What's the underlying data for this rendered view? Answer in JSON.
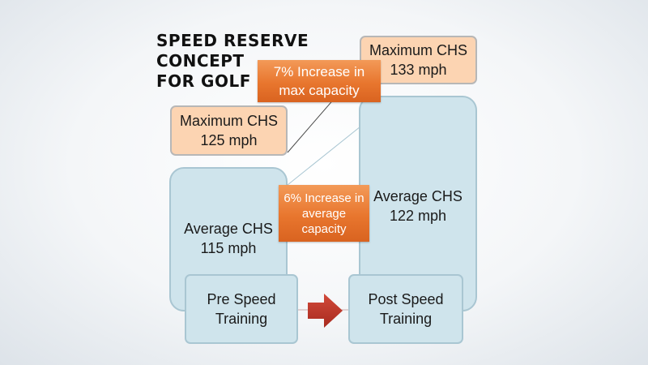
{
  "title": {
    "line1": "SPEED RESERVE",
    "line2": "CONCEPT",
    "line3": "FOR GOLF"
  },
  "pre": {
    "max_label": "Maximum CHS",
    "max_value": "125 mph",
    "avg_label": "Average CHS",
    "avg_value": "115 mph",
    "stage_line1": "Pre Speed",
    "stage_line2": "Training"
  },
  "post": {
    "max_label": "Maximum CHS",
    "max_value": "133 mph",
    "avg_label": "Average CHS",
    "avg_value": "122 mph",
    "stage_line1": "Post Speed",
    "stage_line2": "Training"
  },
  "callouts": {
    "max_line1": "7% Increase in",
    "max_line2": "max capacity",
    "avg_line1": "6% Increase in",
    "avg_line2": "average",
    "avg_line3": "capacity"
  },
  "colors": {
    "peach": "#fcd4b2",
    "blue": "#cfe4ec",
    "orange": "#e8762e",
    "arrow": "#c0392b"
  }
}
